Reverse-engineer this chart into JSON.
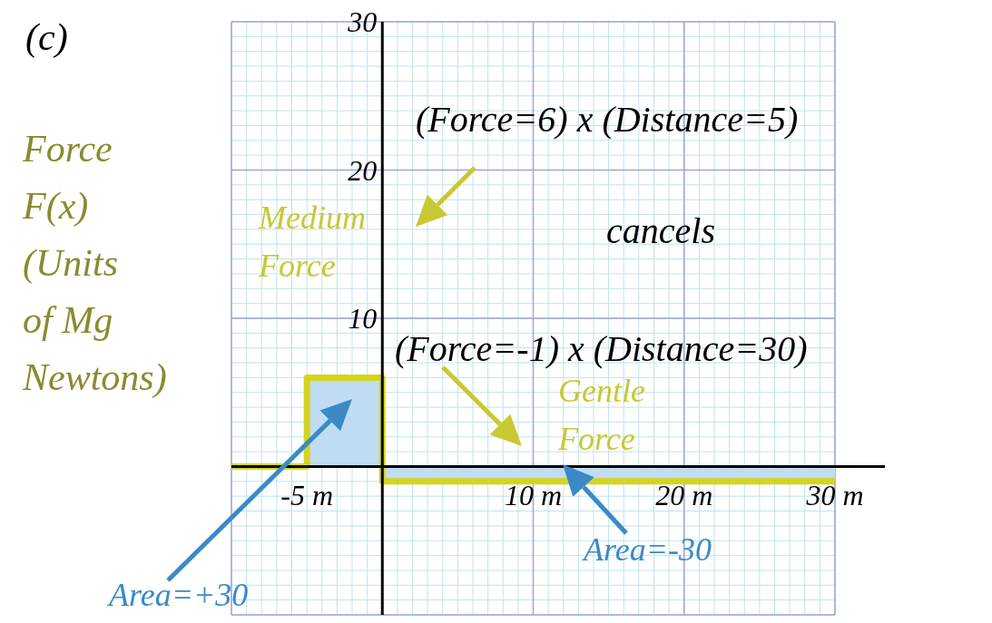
{
  "chart_data": {
    "type": "step",
    "ylabel": "Force F(x) (Units of Mg Newtons)",
    "xlim": [
      -10,
      30
    ],
    "ylim": [
      -10,
      30
    ],
    "xticks": [
      {
        "value": -10,
        "label": null
      },
      {
        "value": -5,
        "label": "-5 m"
      },
      {
        "value": 0,
        "label": null
      },
      {
        "value": 10,
        "label": "10 m"
      },
      {
        "value": 20,
        "label": "20 m"
      },
      {
        "value": 30,
        "label": "30 m"
      }
    ],
    "yticks": [
      {
        "value": -10,
        "label": null
      },
      {
        "value": 0,
        "label": null
      },
      10,
      20,
      30
    ],
    "grid": true,
    "series": [
      {
        "type": "area",
        "color": "#c0dcf2",
        "x": [
          -5,
          0,
          0,
          30
        ],
        "values": [
          6,
          6,
          -1,
          -1
        ]
      },
      {
        "color": "#d4d420",
        "x": [
          -10,
          -5,
          0,
          30
        ],
        "values": [
          0,
          6,
          -1,
          -1
        ]
      }
    ],
    "annotations": [
      "(c)",
      "(Force=6) x (Distance=5)",
      "Medium Force",
      "cancels",
      "(Force=-1) x (Distance=30)",
      "Gentle Force",
      "Area=-30",
      "Area=+30"
    ]
  }
}
